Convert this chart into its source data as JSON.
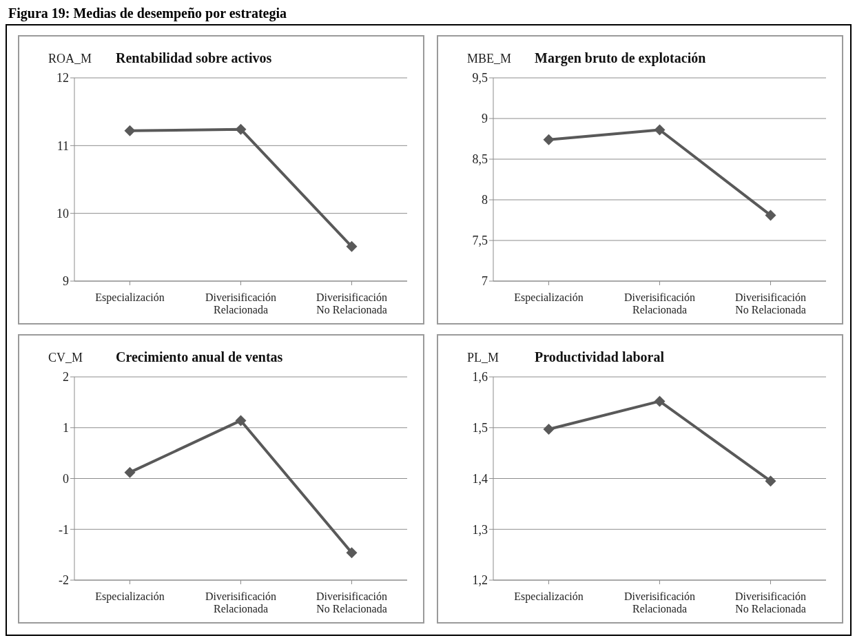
{
  "chart_data": [
    {
      "type": "line",
      "annotations": [
        "Figura 19: Medias de desempeño por estrategia"
      ],
      "title": "Rentabilidad sobre activos",
      "ylabel": "ROA_M",
      "categories": [
        "Especialización",
        "Diverisificación Relacionada",
        "Diverisificación No Relacionada"
      ],
      "series": [
        {
          "color": "#595959",
          "values": [
            11.22,
            11.24,
            9.51
          ]
        }
      ],
      "ylim": [
        9,
        12
      ],
      "yticks": [
        9,
        10,
        11,
        12
      ],
      "grid": "y",
      "marker": "diamond",
      "legend": false
    },
    {
      "type": "line",
      "title": "Margen bruto de explotación",
      "ylabel": "MBE_M",
      "categories": [
        "Especialización",
        "Diverisificación Relacionada",
        "Diverisificación No Relacionada"
      ],
      "series": [
        {
          "color": "#595959",
          "values": [
            8.74,
            8.86,
            7.81
          ]
        }
      ],
      "ylim": [
        7,
        9.5
      ],
      "yticks": [
        7,
        {
          "value": 7.5,
          "label": "7,5"
        },
        8,
        {
          "value": 8.5,
          "label": "8,5"
        },
        9,
        {
          "value": 9.5,
          "label": "9,5"
        }
      ],
      "grid": "y",
      "marker": "diamond",
      "legend": false
    },
    {
      "type": "line",
      "title": "Crecimiento anual de ventas",
      "ylabel": "CV_M",
      "categories": [
        "Especialización",
        "Diverisificación Relacionada",
        "Diverisificación No Relacionada"
      ],
      "series": [
        {
          "color": "#595959",
          "values": [
            0.12,
            1.14,
            -1.46
          ]
        }
      ],
      "ylim": [
        -2,
        2
      ],
      "yticks": [
        -2,
        -1,
        0,
        1,
        2
      ],
      "grid": "y",
      "marker": "diamond",
      "legend": false
    },
    {
      "type": "line",
      "title": "Productividad laboral",
      "ylabel": "PL_M",
      "categories": [
        "Especialización",
        "Diverisificación Relacionada",
        "Diverisificación No Relacionada"
      ],
      "series": [
        {
          "color": "#595959",
          "values": [
            1.497,
            1.552,
            1.395
          ]
        }
      ],
      "ylim": [
        1.2,
        1.6
      ],
      "yticks": [
        {
          "value": 1.2,
          "label": "1,2"
        },
        {
          "value": 1.3,
          "label": "1,3"
        },
        {
          "value": 1.4,
          "label": "1,4"
        },
        {
          "value": 1.5,
          "label": "1,5"
        },
        {
          "value": 1.6,
          "label": "1,6"
        }
      ],
      "grid": "y",
      "marker": "diamond",
      "legend": false
    }
  ]
}
